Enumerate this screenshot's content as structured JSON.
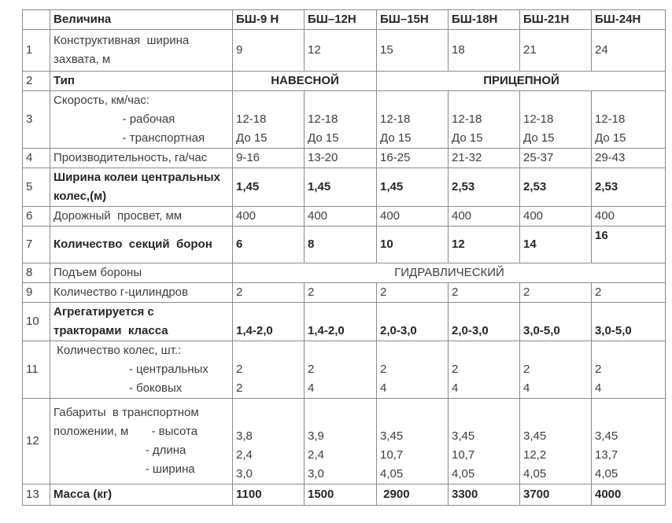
{
  "page": {
    "background_color": "#ffffff",
    "border_color": "#8b8b8b",
    "text_color": "#3e3e3e",
    "bold_text_color": "#262626"
  },
  "table": {
    "columns": [
      "",
      "Величина",
      "БШ-9 Н",
      "БШ–12Н",
      "БШ–15Н",
      "БШ-18Н",
      "БШ-21Н",
      "БШ-24Н"
    ],
    "rows": [
      {
        "num": "1",
        "label": "Конструктивная  ширина захвата, м",
        "bold": false,
        "cells": [
          "9",
          "12",
          "15",
          "18",
          "21",
          "24"
        ]
      },
      {
        "num": "2",
        "label": "Тип",
        "bold": true,
        "spans": [
          {
            "text": "НАВЕСНОЙ",
            "cols": 2
          },
          {
            "text": "ПРИЦЕПНОЙ",
            "cols": 4
          }
        ]
      },
      {
        "num": "3",
        "label": "Скорость, км/час:\n                     - рабочая\n                     - транспортная",
        "bold": false,
        "cells": [
          "12-18\nДо 15",
          "12-18\nДо 15",
          "12-18\nДо 15",
          "12-18\nДо 15",
          "12-18\nДо 15",
          "12-18\nДо 15"
        ]
      },
      {
        "num": "4",
        "label": "Производительность, га/час",
        "bold": false,
        "cells": [
          "9-16",
          "13-20",
          "16-25",
          "21-32",
          "25-37",
          "29-43"
        ]
      },
      {
        "num": "5",
        "label": "Ширина колеи центральных колес,(м)",
        "bold": true,
        "cells": [
          "1,45",
          "1,45",
          "1,45",
          "2,53",
          "2,53",
          "2,53"
        ]
      },
      {
        "num": "6",
        "label": "Дорожный  просвет, мм",
        "bold": false,
        "cells": [
          "400",
          "400",
          "400",
          "400",
          "400",
          "400"
        ]
      },
      {
        "num": "7",
        "label": "Количество  секций  борон",
        "bold": true,
        "cells": [
          "6",
          "8",
          "10",
          "12",
          "14",
          "16"
        ]
      },
      {
        "num": "8",
        "label": "Подъем бороны",
        "bold": false,
        "spans": [
          {
            "text": "ГИДРАВЛИЧЕСКИЙ",
            "cols": 6
          }
        ]
      },
      {
        "num": "9",
        "label": "Количество г-цилиндров",
        "bold": false,
        "cells": [
          "2",
          "2",
          "2",
          "2",
          "2",
          "2"
        ]
      },
      {
        "num": "10",
        "label": "Агрегатируется с\nтракторами  класса",
        "bold": true,
        "cells": [
          "1,4-2,0",
          "1,4-2,0",
          "2,0-3,0",
          "2,0-3,0",
          "3,0-5,0",
          "3,0-5,0"
        ]
      },
      {
        "num": "11",
        "label": " Количество колес, шт.:\n                       - центральных\n                       - боковых",
        "bold": false,
        "cells": [
          "2\n2",
          "2\n4",
          "2\n4",
          "2\n4",
          "2\n4",
          "2\n4"
        ]
      },
      {
        "num": "12",
        "label": "Габариты  в транспортном\nположении, м       - высота\n                            - длина\n                            - ширина",
        "bold": false,
        "cells": [
          "3,8\n2,4\n3,0",
          "3,9\n2,4\n3,0",
          "3,45\n10,7\n4,05",
          "3,45\n10,7\n4,05",
          "3,45\n12,2\n4,05",
          "3,45\n13,7\n4,05"
        ]
      },
      {
        "num": "13",
        "label": "Масса (кг)",
        "bold": true,
        "cells": [
          "1100",
          "1500",
          " 2900",
          "3300",
          "3700",
          "4000"
        ]
      }
    ]
  }
}
